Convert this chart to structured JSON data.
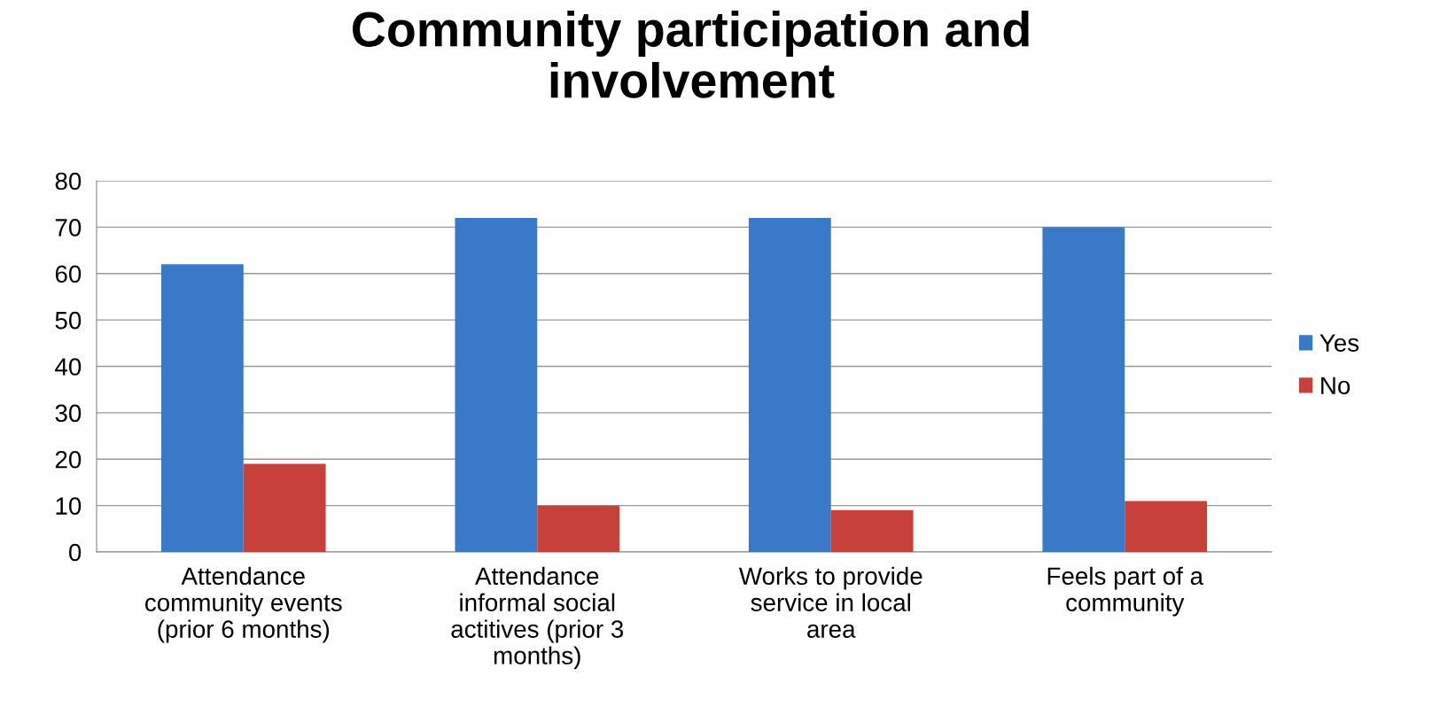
{
  "chart_data": {
    "type": "bar",
    "title": "Community participation and\ninvolvement",
    "categories": [
      "Attendance\ncommunity events\n(prior 6 months)",
      "Attendance\ninformal social\nactitives (prior 3\nmonths)",
      "Works to provide\nservice in local\narea",
      "Feels part of a\ncommunity"
    ],
    "series": [
      {
        "name": "Yes",
        "color": "#3a78c8",
        "values": [
          62,
          72,
          72,
          70
        ]
      },
      {
        "name": "No",
        "color": "#c8403a",
        "values": [
          19,
          10,
          9,
          11
        ]
      }
    ],
    "ylim": [
      0,
      80
    ],
    "yticks": [
      0,
      10,
      20,
      30,
      40,
      50,
      60,
      70,
      80
    ],
    "grid": "y",
    "legend": "right"
  }
}
